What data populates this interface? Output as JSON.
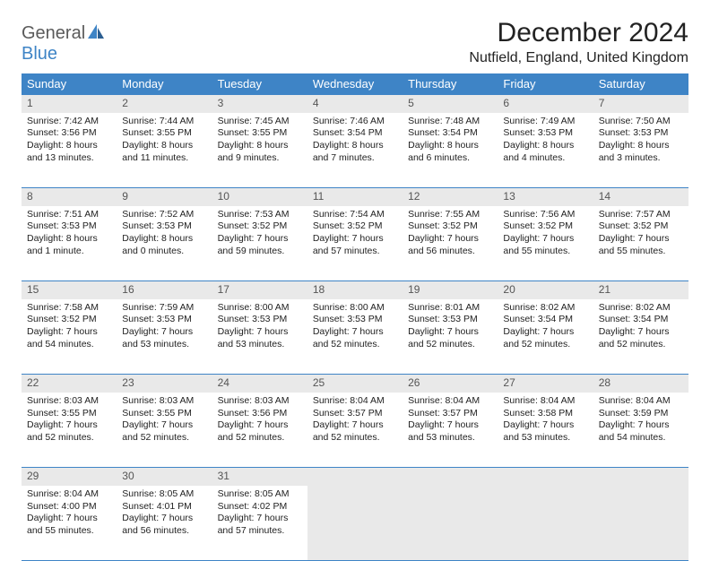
{
  "logo": {
    "word1": "General",
    "word2": "Blue"
  },
  "title": "December 2024",
  "location": "Nutfield, England, United Kingdom",
  "colors": {
    "header_bg": "#3e84c6",
    "header_text": "#ffffff",
    "daynum_bg": "#e9e9e9",
    "daynum_text": "#555555",
    "border": "#3e84c6",
    "body_text": "#222222",
    "logo_gray": "#5a5a5a",
    "logo_blue": "#3e84c6"
  },
  "typography": {
    "title_fontsize": 30,
    "location_fontsize": 16,
    "dayheader_fontsize": 13,
    "cell_fontsize": 10.5
  },
  "day_headers": [
    "Sunday",
    "Monday",
    "Tuesday",
    "Wednesday",
    "Thursday",
    "Friday",
    "Saturday"
  ],
  "weeks": [
    [
      {
        "n": "1",
        "sunrise": "7:42 AM",
        "sunset": "3:56 PM",
        "daylight": "8 hours and 13 minutes."
      },
      {
        "n": "2",
        "sunrise": "7:44 AM",
        "sunset": "3:55 PM",
        "daylight": "8 hours and 11 minutes."
      },
      {
        "n": "3",
        "sunrise": "7:45 AM",
        "sunset": "3:55 PM",
        "daylight": "8 hours and 9 minutes."
      },
      {
        "n": "4",
        "sunrise": "7:46 AM",
        "sunset": "3:54 PM",
        "daylight": "8 hours and 7 minutes."
      },
      {
        "n": "5",
        "sunrise": "7:48 AM",
        "sunset": "3:54 PM",
        "daylight": "8 hours and 6 minutes."
      },
      {
        "n": "6",
        "sunrise": "7:49 AM",
        "sunset": "3:53 PM",
        "daylight": "8 hours and 4 minutes."
      },
      {
        "n": "7",
        "sunrise": "7:50 AM",
        "sunset": "3:53 PM",
        "daylight": "8 hours and 3 minutes."
      }
    ],
    [
      {
        "n": "8",
        "sunrise": "7:51 AM",
        "sunset": "3:53 PM",
        "daylight": "8 hours and 1 minute."
      },
      {
        "n": "9",
        "sunrise": "7:52 AM",
        "sunset": "3:53 PM",
        "daylight": "8 hours and 0 minutes."
      },
      {
        "n": "10",
        "sunrise": "7:53 AM",
        "sunset": "3:52 PM",
        "daylight": "7 hours and 59 minutes."
      },
      {
        "n": "11",
        "sunrise": "7:54 AM",
        "sunset": "3:52 PM",
        "daylight": "7 hours and 57 minutes."
      },
      {
        "n": "12",
        "sunrise": "7:55 AM",
        "sunset": "3:52 PM",
        "daylight": "7 hours and 56 minutes."
      },
      {
        "n": "13",
        "sunrise": "7:56 AM",
        "sunset": "3:52 PM",
        "daylight": "7 hours and 55 minutes."
      },
      {
        "n": "14",
        "sunrise": "7:57 AM",
        "sunset": "3:52 PM",
        "daylight": "7 hours and 55 minutes."
      }
    ],
    [
      {
        "n": "15",
        "sunrise": "7:58 AM",
        "sunset": "3:52 PM",
        "daylight": "7 hours and 54 minutes."
      },
      {
        "n": "16",
        "sunrise": "7:59 AM",
        "sunset": "3:53 PM",
        "daylight": "7 hours and 53 minutes."
      },
      {
        "n": "17",
        "sunrise": "8:00 AM",
        "sunset": "3:53 PM",
        "daylight": "7 hours and 53 minutes."
      },
      {
        "n": "18",
        "sunrise": "8:00 AM",
        "sunset": "3:53 PM",
        "daylight": "7 hours and 52 minutes."
      },
      {
        "n": "19",
        "sunrise": "8:01 AM",
        "sunset": "3:53 PM",
        "daylight": "7 hours and 52 minutes."
      },
      {
        "n": "20",
        "sunrise": "8:02 AM",
        "sunset": "3:54 PM",
        "daylight": "7 hours and 52 minutes."
      },
      {
        "n": "21",
        "sunrise": "8:02 AM",
        "sunset": "3:54 PM",
        "daylight": "7 hours and 52 minutes."
      }
    ],
    [
      {
        "n": "22",
        "sunrise": "8:03 AM",
        "sunset": "3:55 PM",
        "daylight": "7 hours and 52 minutes."
      },
      {
        "n": "23",
        "sunrise": "8:03 AM",
        "sunset": "3:55 PM",
        "daylight": "7 hours and 52 minutes."
      },
      {
        "n": "24",
        "sunrise": "8:03 AM",
        "sunset": "3:56 PM",
        "daylight": "7 hours and 52 minutes."
      },
      {
        "n": "25",
        "sunrise": "8:04 AM",
        "sunset": "3:57 PM",
        "daylight": "7 hours and 52 minutes."
      },
      {
        "n": "26",
        "sunrise": "8:04 AM",
        "sunset": "3:57 PM",
        "daylight": "7 hours and 53 minutes."
      },
      {
        "n": "27",
        "sunrise": "8:04 AM",
        "sunset": "3:58 PM",
        "daylight": "7 hours and 53 minutes."
      },
      {
        "n": "28",
        "sunrise": "8:04 AM",
        "sunset": "3:59 PM",
        "daylight": "7 hours and 54 minutes."
      }
    ],
    [
      {
        "n": "29",
        "sunrise": "8:04 AM",
        "sunset": "4:00 PM",
        "daylight": "7 hours and 55 minutes."
      },
      {
        "n": "30",
        "sunrise": "8:05 AM",
        "sunset": "4:01 PM",
        "daylight": "7 hours and 56 minutes."
      },
      {
        "n": "31",
        "sunrise": "8:05 AM",
        "sunset": "4:02 PM",
        "daylight": "7 hours and 57 minutes."
      },
      null,
      null,
      null,
      null
    ]
  ],
  "labels": {
    "sunrise": "Sunrise: ",
    "sunset": "Sunset: ",
    "daylight": "Daylight: "
  }
}
